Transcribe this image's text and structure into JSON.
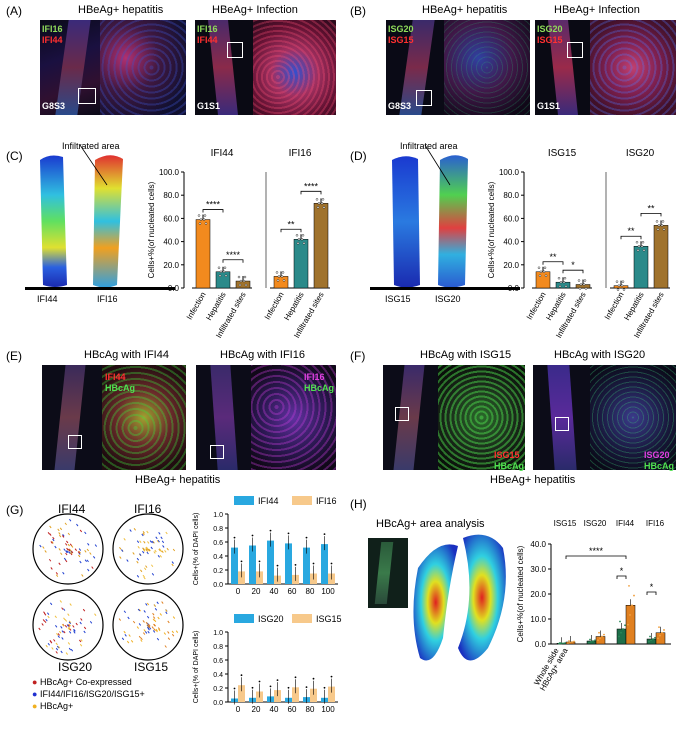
{
  "panels": {
    "A": {
      "label": "(A)",
      "title_left": "HBeAg+ hepatitis",
      "title_right": "HBeAg+ Infection",
      "ov1": "IFI16",
      "ov2": "IFI44",
      "id_left": "G8S3",
      "id_right": "G1S1"
    },
    "B": {
      "label": "(B)",
      "title_left": "HBeAg+ hepatitis",
      "title_right": "HBeAg+ Infection",
      "ov1": "ISG20",
      "ov2": "ISG15",
      "id_left": "G8S3",
      "id_right": "G1S1"
    },
    "C": {
      "label": "(C)",
      "note": "Infiltrated area",
      "slide1": "IFI44",
      "slide2": "IFI16"
    },
    "D": {
      "label": "(D)",
      "note": "Infiltrated area",
      "slide1": "ISG15",
      "slide2": "ISG20"
    },
    "E": {
      "label": "(E)",
      "title_left": "HBcAg with IFI44",
      "title_right": "HBcAg with IFI16",
      "ov_a1": "IFI44",
      "ov_a2": "HBcAg",
      "ov_b1": "IFI16",
      "ov_b2": "HBcAg",
      "caption": "HBeAg+ hepatitis"
    },
    "F": {
      "label": "(F)",
      "title_left": "HBcAg with ISG15",
      "title_right": "HBcAg with ISG20",
      "ov_a1": "ISG15",
      "ov_a2": "HBcAg",
      "ov_b1": "ISG20",
      "ov_b2": "HBcAg",
      "caption": "HBeAg+ hepatitis"
    },
    "G": {
      "label": "(G)",
      "c1": "IFI44",
      "c2": "IFI16",
      "c3": "ISG20",
      "c4": "ISG15",
      "legend1": "HBcAg+ Co-expressed",
      "legend2": "IFI44/IFI16/ISG20/ISG15+",
      "legend3": "HBcAg+"
    },
    "H": {
      "label": "(H)",
      "title": "HBcAg+ area analysis"
    }
  },
  "colors": {
    "orange": "#f28a1e",
    "teal": "#2b8a8a",
    "brown": "#a0732d",
    "blue": "#29a8e0",
    "peach": "#f7c98b",
    "green_dark": "#1f6f4a"
  },
  "chart_data": [
    {
      "type": "bar",
      "id": "C",
      "ylabel": "Cells+%(of nucleated cells)",
      "ylim": [
        0,
        100
      ],
      "yticks": [
        "0.0",
        "20.0",
        "40.0",
        "60.0",
        "80.0",
        "100.0"
      ],
      "groups": [
        "IFI44",
        "IFI16"
      ],
      "categories": [
        "Infection",
        "Hepatitis",
        "Infiltrated sites"
      ],
      "series": [
        {
          "name": "IFI44",
          "values": [
            59,
            14,
            6
          ]
        },
        {
          "name": "IFI16",
          "values": [
            10,
            42,
            73
          ]
        }
      ],
      "sig": [
        "****",
        "****",
        "**",
        "****"
      ]
    },
    {
      "type": "bar",
      "id": "D",
      "ylabel": "Cells+%(of nucleated cells)",
      "ylim": [
        0,
        100
      ],
      "yticks": [
        "0.0",
        "20.0",
        "40.0",
        "60.0",
        "80.0",
        "100.0"
      ],
      "groups": [
        "ISG15",
        "ISG20"
      ],
      "categories": [
        "Infection",
        "Hepatitis",
        "Infiltrated sites"
      ],
      "series": [
        {
          "name": "ISG15",
          "values": [
            14,
            5,
            3
          ]
        },
        {
          "name": "ISG20",
          "values": [
            2,
            36,
            54
          ]
        }
      ],
      "sig": [
        "**",
        "*",
        "**",
        "**"
      ]
    },
    {
      "type": "bar",
      "id": "G-top",
      "ylabel": "Cells+(% of DAPI cells)",
      "ylim": [
        0,
        1.0
      ],
      "yticks": [
        "0.0",
        "0.2",
        "0.4",
        "0.6",
        "0.8",
        "1.0"
      ],
      "categories": [
        "0",
        "20",
        "40",
        "60",
        "80",
        "100"
      ],
      "series": [
        {
          "name": "IFI44",
          "values": [
            0.52,
            0.55,
            0.62,
            0.58,
            0.52,
            0.57
          ]
        },
        {
          "name": "IFI16",
          "values": [
            0.18,
            0.18,
            0.12,
            0.13,
            0.15,
            0.15
          ]
        }
      ]
    },
    {
      "type": "bar",
      "id": "G-bottom",
      "ylabel": "Cells+(% of DAPI cells)",
      "ylim": [
        0,
        1.0
      ],
      "yticks": [
        "0.0",
        "0.2",
        "0.4",
        "0.6",
        "0.8",
        "1.0"
      ],
      "categories": [
        "0",
        "20",
        "40",
        "60",
        "80",
        "100"
      ],
      "series": [
        {
          "name": "ISG20",
          "values": [
            0.05,
            0.06,
            0.08,
            0.06,
            0.07,
            0.06
          ]
        },
        {
          "name": "ISG15",
          "values": [
            0.24,
            0.15,
            0.17,
            0.21,
            0.19,
            0.22
          ]
        }
      ]
    },
    {
      "type": "bar",
      "id": "H",
      "ylabel": "Cells+%(of nucleated cells)",
      "ylim": [
        0,
        40
      ],
      "yticks": [
        "0.0",
        "10.0",
        "20.0",
        "30.0",
        "40.0"
      ],
      "groups": [
        "ISG15",
        "ISG20",
        "IFI44",
        "IFI16"
      ],
      "categories": [
        "Whole slide",
        "HBcAg+ area"
      ],
      "values": [
        [
          0.3,
          0.8
        ],
        [
          1.2,
          3.0
        ],
        [
          6.0,
          15.5
        ],
        [
          2.0,
          4.5
        ]
      ],
      "sig": [
        "****",
        "*",
        "*"
      ]
    }
  ]
}
